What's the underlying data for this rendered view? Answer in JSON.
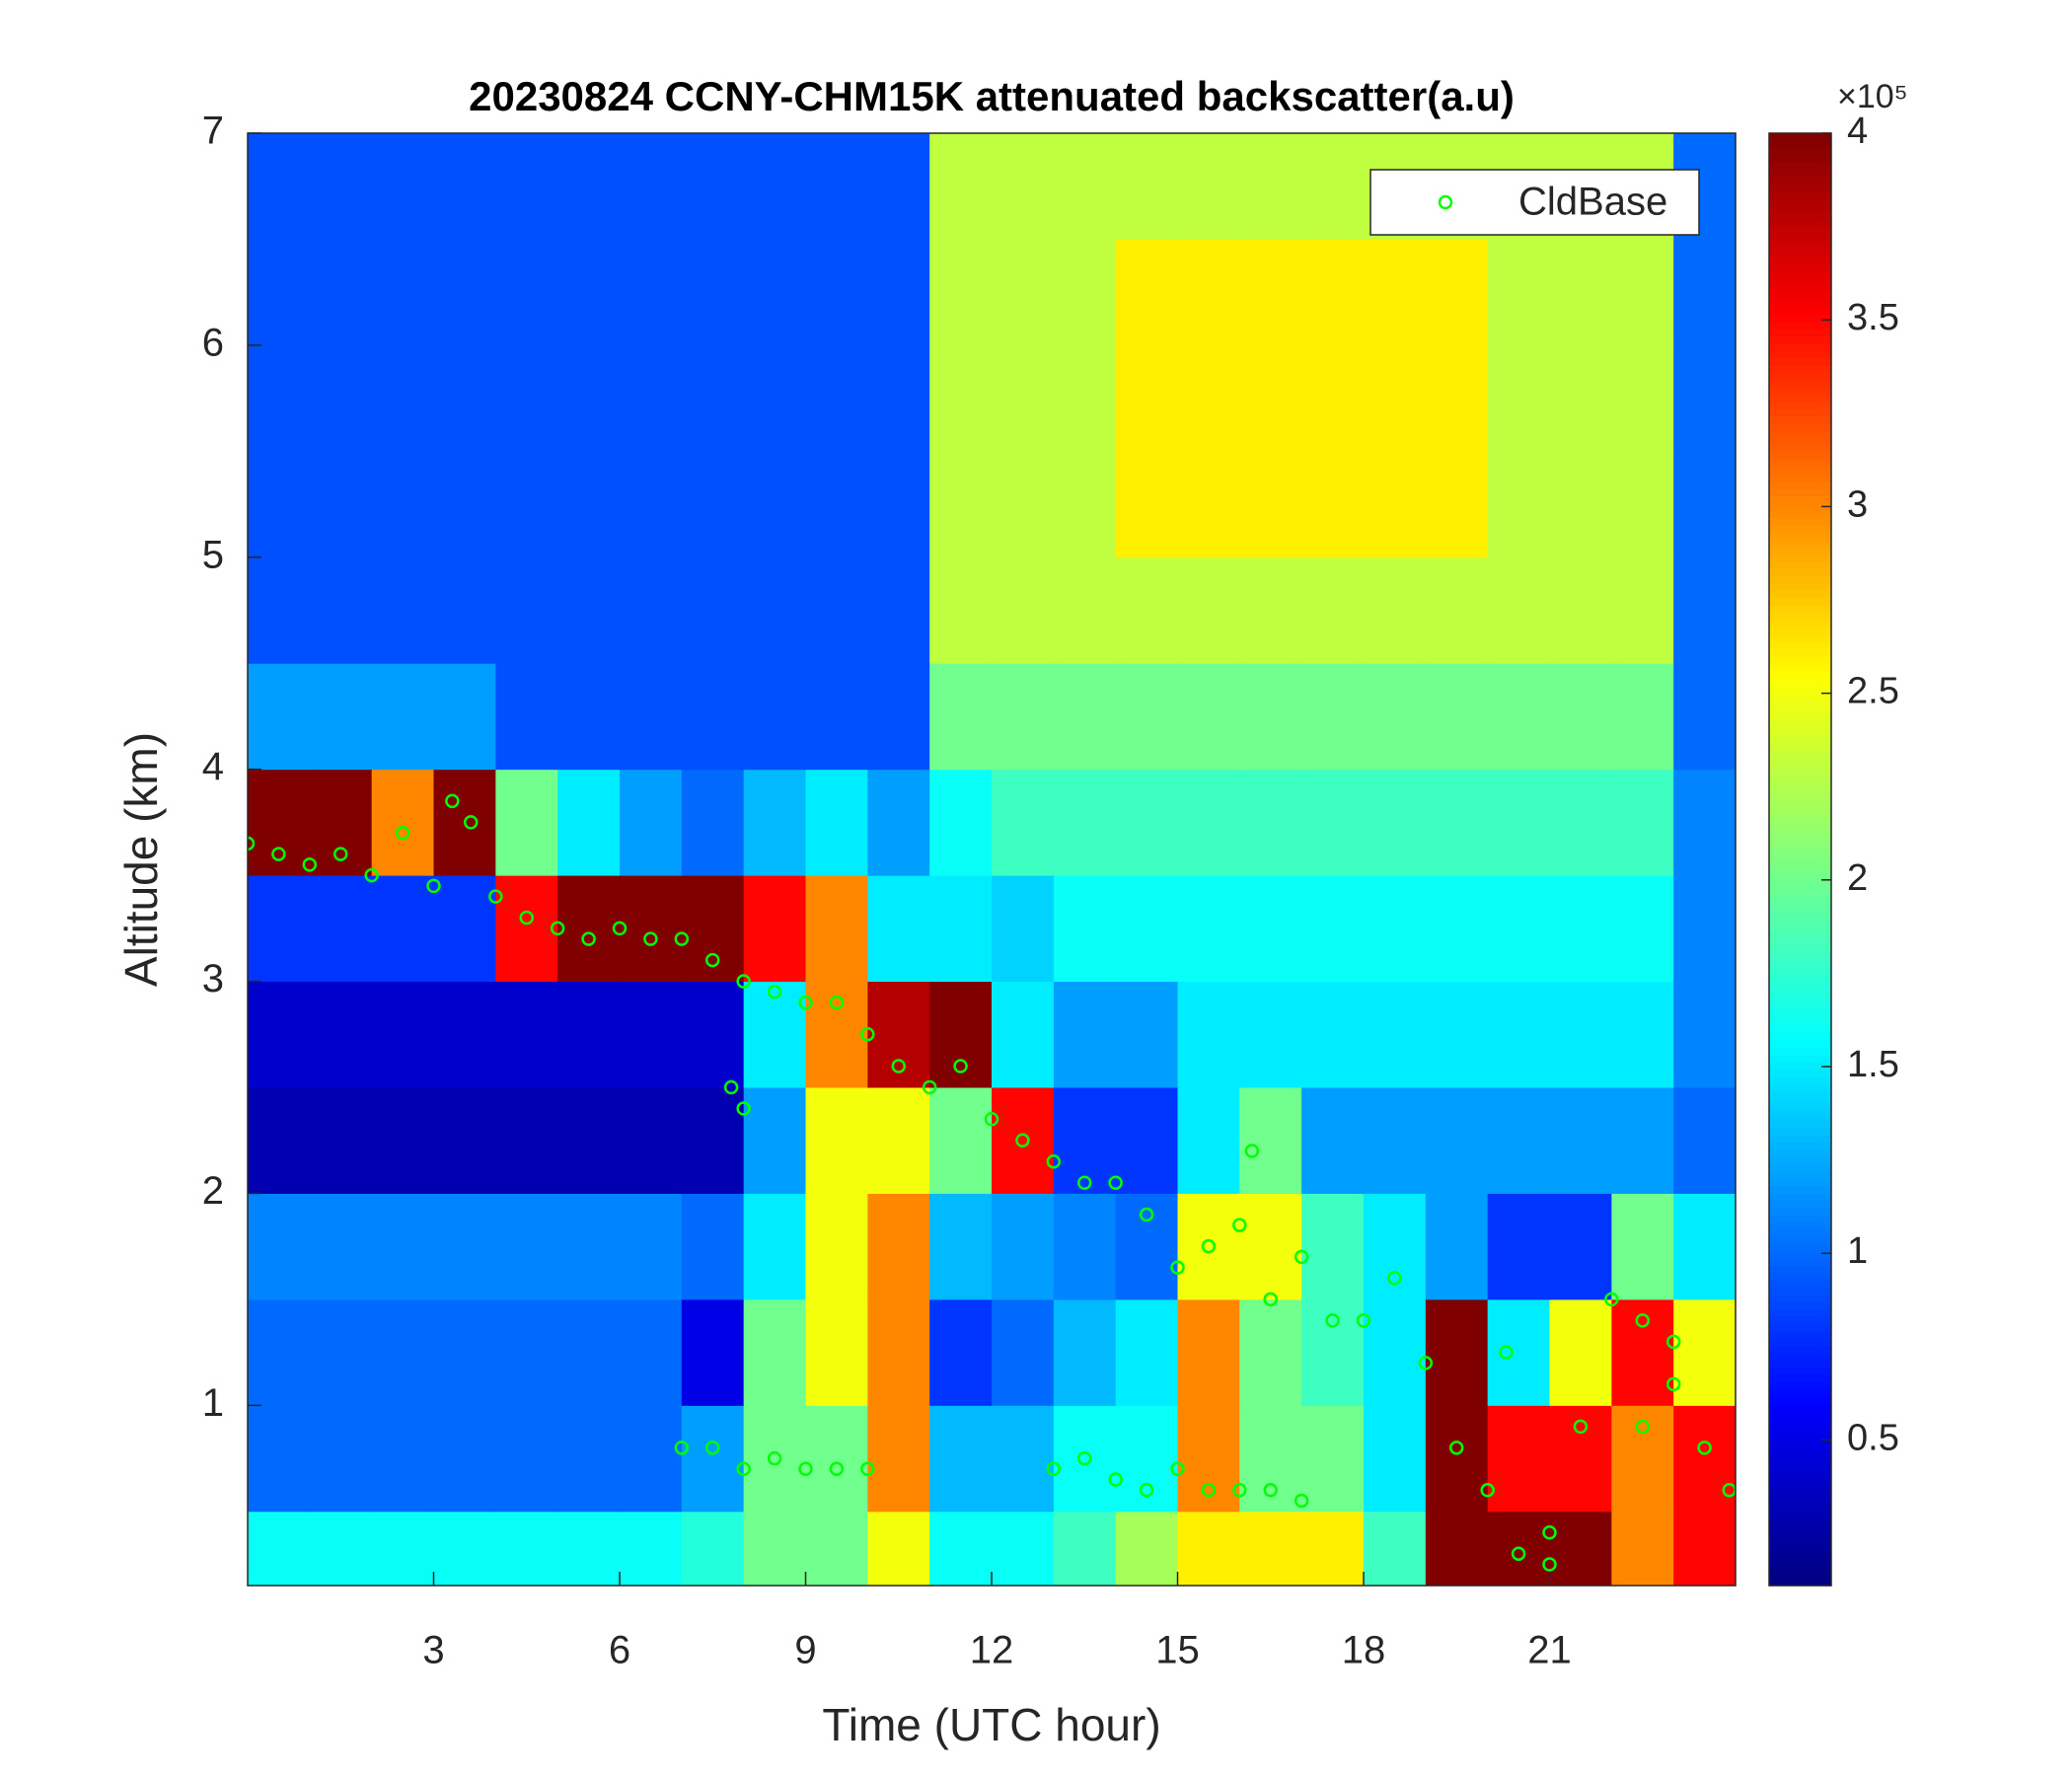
{
  "chart_data": {
    "type": "heatmap",
    "title": "20230824 CCNY-CHM15K attenuated backscatter(a.u)",
    "x_label": "Time (UTC hour)",
    "y_label": "Altitude (km)",
    "colorbar_multiplier": "×10⁵",
    "xlim": [
      0,
      24
    ],
    "ylim": [
      0.15,
      7
    ],
    "xticks": [
      3,
      6,
      9,
      12,
      15,
      18,
      21
    ],
    "yticks": [
      1,
      2,
      3,
      4,
      5,
      6,
      7
    ],
    "zlim": [
      0.11,
      4
    ],
    "zticks": [
      0.5,
      1,
      1.5,
      2,
      2.5,
      3,
      3.5,
      4
    ],
    "colormap": "jet",
    "legend_position": "upper right",
    "x": [
      0.5,
      1.5,
      2.5,
      3.5,
      4.5,
      5.5,
      6.5,
      7.5,
      8.5,
      9.5,
      10.5,
      11.5,
      12.5,
      13.5,
      14.5,
      15.5,
      16.5,
      17.5,
      18.5,
      19.5,
      20.5,
      21.5,
      22.5,
      23.5
    ],
    "y": [
      0.25,
      0.75,
      1.25,
      1.75,
      2.25,
      2.75,
      3.25,
      3.75,
      4.25,
      4.75,
      5.25,
      5.75,
      6.25,
      6.75
    ],
    "z": [
      [
        1.6,
        1.6,
        1.6,
        1.6,
        1.6,
        1.6,
        1.6,
        1.7,
        2.0,
        2.0,
        2.5,
        1.6,
        1.6,
        1.8,
        2.2,
        2.6,
        2.6,
        2.6,
        1.8,
        4,
        4,
        4,
        3,
        3.5
      ],
      [
        1.0,
        1.0,
        1.0,
        1.0,
        1.0,
        1.0,
        1.0,
        1.2,
        2.0,
        2.0,
        3.0,
        1.3,
        1.3,
        1.6,
        1.6,
        3,
        2,
        2,
        1.5,
        4,
        3.5,
        3.5,
        3,
        3.5
      ],
      [
        1.0,
        1.0,
        1.0,
        1.0,
        1.0,
        1.0,
        1.0,
        0.5,
        2,
        2.5,
        3,
        0.8,
        1.0,
        1.3,
        1.5,
        3,
        2,
        1.8,
        1.5,
        4,
        1.5,
        2.5,
        3.5,
        2.5
      ],
      [
        1.1,
        1.1,
        1.1,
        1.1,
        1.1,
        1.1,
        1.1,
        1.0,
        1.5,
        2.5,
        3,
        1.3,
        1.2,
        1.1,
        1.0,
        2.5,
        2.5,
        1.8,
        1.5,
        1.2,
        0.8,
        0.8,
        2,
        1.5
      ],
      [
        0.3,
        0.3,
        0.3,
        0.3,
        0.3,
        0.3,
        0.3,
        0.3,
        1.2,
        2.5,
        2.5,
        2,
        3.5,
        0.8,
        0.8,
        1.5,
        2,
        1.2,
        1.2,
        1.2,
        1.2,
        1.2,
        1.2,
        1.0
      ],
      [
        0.4,
        0.4,
        0.4,
        0.4,
        0.4,
        0.4,
        0.4,
        0.4,
        1.5,
        3,
        3.8,
        4,
        1.5,
        1.2,
        1.2,
        1.5,
        1.5,
        1.5,
        1.5,
        1.5,
        1.5,
        1.5,
        1.5,
        1.1
      ],
      [
        0.8,
        0.8,
        0.8,
        0.8,
        3.5,
        4,
        4,
        4,
        3.5,
        3,
        1.5,
        1.5,
        1.4,
        1.6,
        1.6,
        1.6,
        1.6,
        1.6,
        1.6,
        1.6,
        1.6,
        1.6,
        1.6,
        1.1
      ],
      [
        4,
        4,
        3,
        4,
        2,
        1.5,
        1.2,
        1.0,
        1.3,
        1.5,
        1.2,
        1.6,
        1.8,
        1.8,
        1.8,
        1.8,
        1.8,
        1.8,
        1.8,
        1.8,
        1.8,
        1.8,
        1.8,
        1.1
      ],
      [
        1.2,
        1.2,
        1.2,
        1.2,
        0.9,
        0.9,
        0.9,
        0.9,
        0.9,
        0.9,
        0.9,
        2,
        2,
        2,
        2,
        2,
        2,
        2,
        2,
        2,
        2,
        2,
        2,
        1.0
      ],
      [
        0.9,
        0.9,
        0.9,
        0.9,
        0.9,
        0.9,
        0.9,
        0.9,
        0.9,
        0.9,
        0.9,
        2.3,
        2.3,
        2.3,
        2.3,
        2.3,
        2.3,
        2.3,
        2.3,
        2.3,
        2.3,
        2.3,
        2.3,
        1.0
      ],
      [
        0.9,
        0.9,
        0.9,
        0.9,
        0.9,
        0.9,
        0.9,
        0.9,
        0.9,
        0.9,
        0.9,
        2.3,
        2.3,
        2.3,
        2.6,
        2.6,
        2.6,
        2.6,
        2.6,
        2.6,
        2.3,
        2.3,
        2.3,
        1.0
      ],
      [
        0.9,
        0.9,
        0.9,
        0.9,
        0.9,
        0.9,
        0.9,
        0.9,
        0.9,
        0.9,
        0.9,
        2.3,
        2.3,
        2.3,
        2.6,
        2.6,
        2.6,
        2.6,
        2.6,
        2.6,
        2.3,
        2.3,
        2.3,
        1.0
      ],
      [
        0.9,
        0.9,
        0.9,
        0.9,
        0.9,
        0.9,
        0.9,
        0.9,
        0.9,
        0.9,
        0.9,
        2.3,
        2.3,
        2.3,
        2.6,
        2.6,
        2.6,
        2.6,
        2.6,
        2.6,
        2.3,
        2.3,
        2.3,
        1.0
      ],
      [
        0.9,
        0.9,
        0.9,
        0.9,
        0.9,
        0.9,
        0.9,
        0.9,
        0.9,
        0.9,
        0.9,
        2.3,
        2.3,
        2.3,
        2.3,
        2.3,
        2.3,
        2.3,
        2.3,
        2.3,
        2.3,
        2.3,
        2.3,
        1.0
      ]
    ],
    "series": [
      {
        "name": "CldBase",
        "type": "scatter",
        "color": "#00ff00",
        "x": [
          0,
          0.5,
          1,
          1.5,
          2,
          2.5,
          3,
          3.3,
          3.6,
          4,
          4.5,
          5,
          5.5,
          6,
          6.5,
          7,
          7.5,
          8,
          8.5,
          9,
          9.5,
          10,
          10.5,
          11,
          11.5,
          12,
          12.5,
          13,
          13.5,
          14,
          14.5,
          15,
          15.5,
          16,
          16.5,
          17,
          17.5,
          18,
          18.5,
          19,
          19.5,
          20,
          20.5,
          21,
          21.5,
          22,
          22.5,
          23,
          23.5,
          23.9,
          7,
          7.5,
          8,
          8.5,
          9,
          9.5,
          10,
          8,
          7.8,
          13,
          13.5,
          14,
          14.5,
          15,
          15.5,
          16,
          16.5,
          17,
          16.2,
          20.3,
          21,
          22.5,
          23
        ],
        "values": [
          3.65,
          3.6,
          3.55,
          3.6,
          3.5,
          3.7,
          3.45,
          3.85,
          3.75,
          3.4,
          3.3,
          3.25,
          3.2,
          3.25,
          3.2,
          3.2,
          3.1,
          3.0,
          2.95,
          2.9,
          2.9,
          2.75,
          2.6,
          2.5,
          2.6,
          2.35,
          2.25,
          2.15,
          2.05,
          2.05,
          1.9,
          1.65,
          1.75,
          1.85,
          1.5,
          1.7,
          1.4,
          1.4,
          1.6,
          1.2,
          0.8,
          0.6,
          0.3,
          0.25,
          0.9,
          1.5,
          1.4,
          1.1,
          0.8,
          0.6,
          0.8,
          0.8,
          0.7,
          0.75,
          0.7,
          0.7,
          0.7,
          2.4,
          2.5,
          0.7,
          0.75,
          0.65,
          0.6,
          0.7,
          0.6,
          0.6,
          0.6,
          0.55,
          2.2,
          1.25,
          0.4,
          0.9,
          1.3
        ]
      }
    ]
  }
}
